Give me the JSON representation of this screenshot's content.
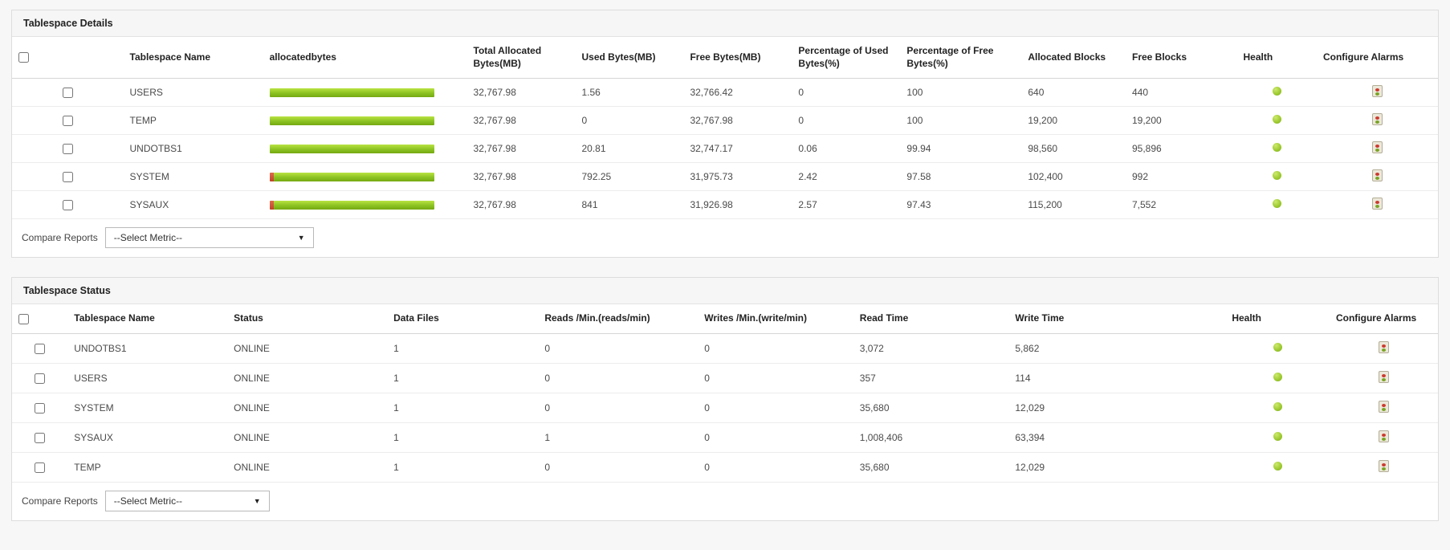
{
  "details": {
    "title": "Tablespace Details",
    "columns": [
      "",
      "Tablespace Name",
      "allocatedbytes",
      "Total Allocated Bytes(MB)",
      "Used Bytes(MB)",
      "Free Bytes(MB)",
      "Percentage of Used Bytes(%)",
      "Percentage of Free Bytes(%)",
      "Allocated Blocks",
      "Free Blocks",
      "Health",
      "Configure Alarms"
    ],
    "rows": [
      {
        "name": "USERS",
        "total_allocated_mb": "32,767.98",
        "used_mb": "1.56",
        "free_mb": "32,766.42",
        "used_pct": "0",
        "free_pct": "100",
        "allocated_blocks": "640",
        "free_blocks": "440",
        "health": "green"
      },
      {
        "name": "TEMP",
        "total_allocated_mb": "32,767.98",
        "used_mb": "0",
        "free_mb": "32,767.98",
        "used_pct": "0",
        "free_pct": "100",
        "allocated_blocks": "19,200",
        "free_blocks": "19,200",
        "health": "green"
      },
      {
        "name": "UNDOTBS1",
        "total_allocated_mb": "32,767.98",
        "used_mb": "20.81",
        "free_mb": "32,747.17",
        "used_pct": "0.06",
        "free_pct": "99.94",
        "allocated_blocks": "98,560",
        "free_blocks": "95,896",
        "health": "green"
      },
      {
        "name": "SYSTEM",
        "total_allocated_mb": "32,767.98",
        "used_mb": "792.25",
        "free_mb": "31,975.73",
        "used_pct": "2.42",
        "free_pct": "97.58",
        "allocated_blocks": "102,400",
        "free_blocks": "992",
        "health": "green"
      },
      {
        "name": "SYSAUX",
        "total_allocated_mb": "32,767.98",
        "used_mb": "841",
        "free_mb": "31,926.98",
        "used_pct": "2.57",
        "free_pct": "97.43",
        "allocated_blocks": "115,200",
        "free_blocks": "7,552",
        "health": "green"
      }
    ],
    "compare_label": "Compare Reports",
    "metric_select": "--Select Metric--"
  },
  "status": {
    "title": "Tablespace Status",
    "columns": [
      "",
      "Tablespace Name",
      "Status",
      "Data Files",
      "Reads /Min.(reads/min)",
      "Writes /Min.(write/min)",
      "Read Time",
      "Write Time",
      "Health",
      "Configure Alarms"
    ],
    "rows": [
      {
        "name": "UNDOTBS1",
        "status": "ONLINE",
        "data_files": "1",
        "reads_min": "0",
        "writes_min": "0",
        "read_time": "3,072",
        "write_time": "5,862",
        "health": "green"
      },
      {
        "name": "USERS",
        "status": "ONLINE",
        "data_files": "1",
        "reads_min": "0",
        "writes_min": "0",
        "read_time": "357",
        "write_time": "114",
        "health": "green"
      },
      {
        "name": "SYSTEM",
        "status": "ONLINE",
        "data_files": "1",
        "reads_min": "0",
        "writes_min": "0",
        "read_time": "35,680",
        "write_time": "12,029",
        "health": "green"
      },
      {
        "name": "SYSAUX",
        "status": "ONLINE",
        "data_files": "1",
        "reads_min": "1",
        "writes_min": "0",
        "read_time": "1,008,406",
        "write_time": "63,394",
        "health": "green"
      },
      {
        "name": "TEMP",
        "status": "ONLINE",
        "data_files": "1",
        "reads_min": "0",
        "writes_min": "0",
        "read_time": "35,680",
        "write_time": "12,029",
        "health": "green"
      }
    ],
    "compare_label": "Compare Reports",
    "metric_select": "--Select Metric--"
  },
  "colors": {
    "bar_green": "#8bc222",
    "bar_used_red": "#c0432a",
    "health_green": "#9bc82e"
  }
}
